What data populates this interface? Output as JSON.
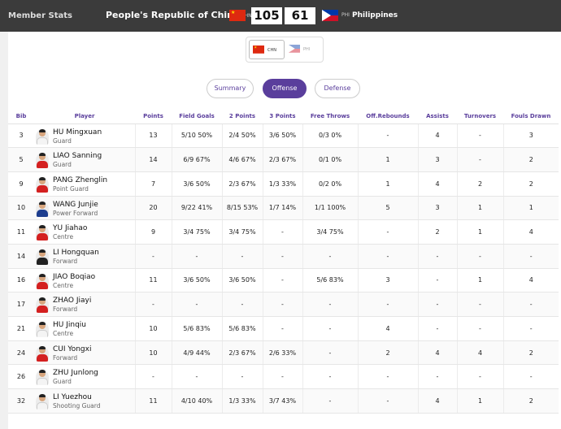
{
  "header": {
    "title": "Member Stats",
    "team_a": {
      "name": "People's Republic of China",
      "code": "CHN",
      "score": "105"
    },
    "team_b": {
      "name": "Philippines",
      "code": "PHI",
      "score": "61"
    }
  },
  "team_switch": {
    "active": "CHN",
    "inactive": "PHI"
  },
  "tabs": [
    "Summary",
    "Offense",
    "Defense"
  ],
  "active_tab": "Offense",
  "columns": [
    "Bib",
    "Player",
    "Points",
    "Field Goals",
    "2 Points",
    "3 Points",
    "Free Throws",
    "Off.Rebounds",
    "Assists",
    "Turnovers",
    "Fouls Drawn"
  ],
  "rows": [
    {
      "bib": "3",
      "name": "HU Mingxuan",
      "pos": "Guard",
      "points": "13",
      "fg": "5/10 50%",
      "p2": "2/4 50%",
      "p3": "3/6 50%",
      "ft": "0/3 0%",
      "oreb": "-",
      "ast": "4",
      "to": "-",
      "fd": "3"
    },
    {
      "bib": "5",
      "name": "LIAO Sanning",
      "pos": "Guard",
      "points": "14",
      "fg": "6/9 67%",
      "p2": "4/6 67%",
      "p3": "2/3 67%",
      "ft": "0/1 0%",
      "oreb": "1",
      "ast": "3",
      "to": "-",
      "fd": "2"
    },
    {
      "bib": "9",
      "name": "PANG Zhenglin",
      "pos": "Point Guard",
      "points": "7",
      "fg": "3/6 50%",
      "p2": "2/3 67%",
      "p3": "1/3 33%",
      "ft": "0/2 0%",
      "oreb": "1",
      "ast": "4",
      "to": "2",
      "fd": "2"
    },
    {
      "bib": "10",
      "name": "WANG Junjie",
      "pos": "Power Forward",
      "points": "20",
      "fg": "9/22 41%",
      "p2": "8/15 53%",
      "p3": "1/7 14%",
      "ft": "1/1 100%",
      "oreb": "5",
      "ast": "3",
      "to": "1",
      "fd": "1"
    },
    {
      "bib": "11",
      "name": "YU Jiahao",
      "pos": "Centre",
      "points": "9",
      "fg": "3/4 75%",
      "p2": "3/4 75%",
      "p3": "-",
      "ft": "3/4 75%",
      "oreb": "-",
      "ast": "2",
      "to": "1",
      "fd": "4"
    },
    {
      "bib": "14",
      "name": "LI Hongquan",
      "pos": "Forward",
      "points": "-",
      "fg": "-",
      "p2": "-",
      "p3": "-",
      "ft": "-",
      "oreb": "-",
      "ast": "-",
      "to": "-",
      "fd": "-"
    },
    {
      "bib": "16",
      "name": "JIAO Boqiao",
      "pos": "Centre",
      "points": "11",
      "fg": "3/6 50%",
      "p2": "3/6 50%",
      "p3": "-",
      "ft": "5/6 83%",
      "oreb": "3",
      "ast": "-",
      "to": "1",
      "fd": "4"
    },
    {
      "bib": "17",
      "name": "ZHAO Jiayi",
      "pos": "Forward",
      "points": "-",
      "fg": "-",
      "p2": "-",
      "p3": "-",
      "ft": "-",
      "oreb": "-",
      "ast": "-",
      "to": "-",
      "fd": "-"
    },
    {
      "bib": "21",
      "name": "HU Jinqiu",
      "pos": "Centre",
      "points": "10",
      "fg": "5/6 83%",
      "p2": "5/6 83%",
      "p3": "-",
      "ft": "-",
      "oreb": "4",
      "ast": "-",
      "to": "-",
      "fd": "-"
    },
    {
      "bib": "24",
      "name": "CUI Yongxi",
      "pos": "Forward",
      "points": "10",
      "fg": "4/9 44%",
      "p2": "2/3 67%",
      "p3": "2/6 33%",
      "ft": "-",
      "oreb": "2",
      "ast": "4",
      "to": "4",
      "fd": "2"
    },
    {
      "bib": "26",
      "name": "ZHU Junlong",
      "pos": "Guard",
      "points": "-",
      "fg": "-",
      "p2": "-",
      "p3": "-",
      "ft": "-",
      "oreb": "-",
      "ast": "-",
      "to": "-",
      "fd": "-"
    },
    {
      "bib": "32",
      "name": "LI Yuezhou",
      "pos": "Shooting Guard",
      "points": "11",
      "fg": "4/10 40%",
      "p2": "1/3 33%",
      "p3": "3/7 43%",
      "ft": "-",
      "oreb": "-",
      "ast": "4",
      "to": "1",
      "fd": "2"
    }
  ],
  "avatar_styles": [
    "white",
    "red",
    "red",
    "blue",
    "red",
    "dark",
    "red",
    "red",
    "white",
    "red",
    "white",
    "white"
  ]
}
